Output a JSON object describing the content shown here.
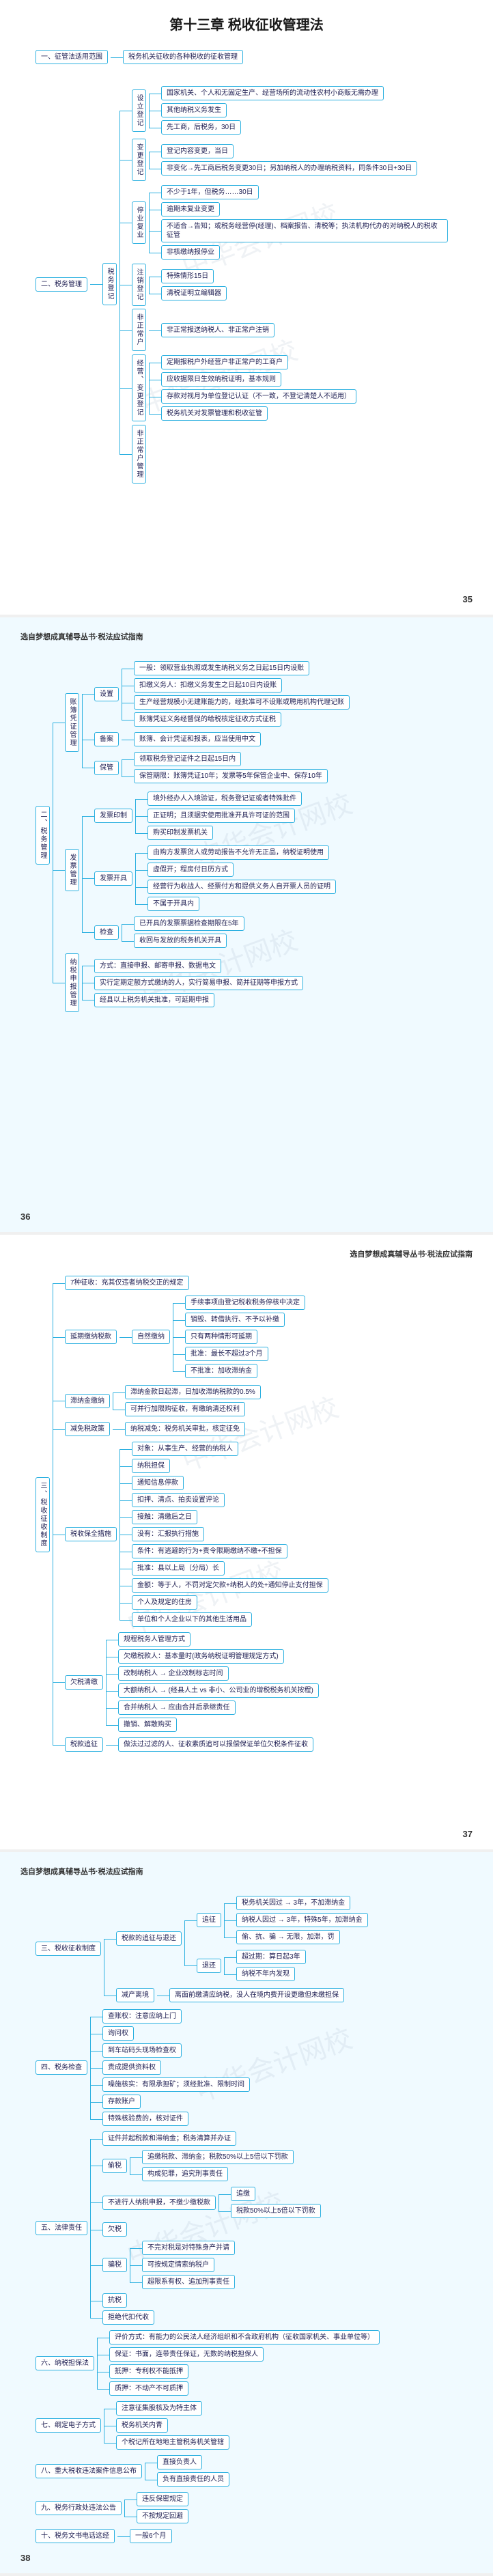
{
  "colors": {
    "line": "#2bb0e0",
    "box_border": "#2bb0e0",
    "box_bg": "#ffffff",
    "text": "#223355",
    "page_bg_even": "#ffffff",
    "page_bg_odd": "#f0faff"
  },
  "typography": {
    "title_fontsize": 20,
    "body_fontsize": 10,
    "header_fontsize": 11
  },
  "chapter_title": "第十三章  税收征收管理法",
  "series_title": "选自梦想成真辅导丛书·税法应试指南",
  "watermark": "中华会计网校",
  "page35": {
    "number": "35",
    "root_a": {
      "label": "一、征管法适用范围",
      "child": "税务机关征收的各种税收的征收管理"
    },
    "root_b": {
      "label": "二、税务管理",
      "children": [
        {
          "label": "税务登记",
          "children": [
            {
              "label": "设立登记",
              "items": [
                "国家机关、个人和无固定生产、经营场所的流动性农村小商贩无需办理",
                "其他纳税义务发生",
                "先工商，后税务，30日"
              ]
            },
            {
              "label": "变更登记",
              "items": [
                "登记内容变更，当日",
                "非变化→先工商后税务变更30日；另加纳税人的办理纳税资料，同条件30日+30日"
              ]
            },
            {
              "label": "停业复业",
              "items": [
                "不少于1年，但税务……30日",
                "逾期未复业变更",
                "不适合→告知；或税务经营停(经理)、档案报告、清税等；执法机构代办的对纳税人的税收征管",
                "非核缴纳报停业"
              ]
            },
            {
              "label": "注销登记",
              "items": [
                "特殊情形15日",
                "清税证明立编辑器"
              ]
            },
            {
              "label": "非正常户",
              "items": [
                "非正常报送纳税人、非正常户注销"
              ]
            },
            {
              "label": "经营、变更登记",
              "items": [
                "定期报税户外经营户非正常户的工商户",
                "应收据限日生效纳税证明，基本规则",
                "存款对视月为单位登记认证（不一致，不登记清楚人不适用）",
                "税务机关对发票管理和税收征管"
              ]
            },
            {
              "label": "非正常户管理",
              "items": []
            }
          ]
        }
      ]
    }
  },
  "page36": {
    "number": "36",
    "root": {
      "label": "二、税务管理",
      "children": [
        {
          "label": "账簿凭证管理",
          "children": [
            {
              "label": "设置",
              "items": [
                "一般：领取营业执照或发生纳税义务之日起15日内设账",
                "扣缴义务人：扣缴义务发生之日起10日内设账",
                "生产经营规模小无建账能力的，经批准可不设账或聘用机构代理记账",
                "账簿凭证义务经督促的给税核定征收方式征税"
              ]
            },
            {
              "label": "备案",
              "items": [
                "账簿、会计凭证和报表，应当使用中文"
              ]
            },
            {
              "label": "保管",
              "items": [
                "领取税务登记证件之日起15日内",
                "保管期限：账簿凭证10年；发票等5年保管企业中、保存10年"
              ]
            }
          ]
        },
        {
          "label": "发票管理",
          "children": [
            {
              "label": "发票印制",
              "items": [
                "境外经办人入境验证，税务登记证或者特殊批件",
                "正证明；且须据实使用批准开具许可证的范围",
                "购买印制发票机关"
              ]
            },
            {
              "label": "发票开具",
              "items": [
                "由购方发票货人或劳动报告不允许无正品，纳税证明使用",
                "虚假开；程房付日历方式",
                "经营行为收战人、经票付方和提供义务人自开票人员的证明",
                "不属于开具内"
              ]
            },
            {
              "label": "检查",
              "items": [
                "已开具的发票票据检查期限在5年",
                "收回与发放的税务机关开具"
              ]
            }
          ]
        },
        {
          "label": "纳税申报管理",
          "children": [
            {
              "label": "方式：直接申报、邮寄申报、数据电文",
              "items": []
            },
            {
              "label": "实行定期定额方式缴纳的人，实行简易申报、简并征期等申报方式",
              "items": []
            },
            {
              "label": "经县以上税务机关批准，可延期申报",
              "items": []
            }
          ]
        }
      ]
    }
  },
  "page37": {
    "number": "37",
    "root": {
      "label": "三、税收征收制度",
      "children": [
        {
          "label": "7种征收：充其仅违者纳税交正的规定",
          "items": []
        },
        {
          "label": "延期缴纳税款",
          "children": [
            {
              "label": "自然缴纳",
              "items": [
                "手续事项由登记税收税务停核中决定",
                "销毁、转借执行、不予以补缴",
                "只有两种情形可延期",
                "批准：最长不超过3个月",
                "不批准：加收滞纳金"
              ]
            }
          ]
        },
        {
          "label": "滞纳金缴纳",
          "items": [
            "滞纳金款日起滞，日加收滞纳税款的0.5%",
            "可并行加限购征收，有缴纳清还权利"
          ]
        },
        {
          "label": "减免税政策",
          "items": [
            "纳税减免：税务机关审批，核定征免"
          ]
        },
        {
          "label": "税收保全措施",
          "items": [
            "对象：从事生产、经营的纳税人",
            "纳税担保",
            "通知信息停款",
            "扣押、清点、拍卖设置评论",
            "接触：清缴后之日",
            "没有：汇报执行措施",
            "条件：有逃避的行为+责令限期缴纳不缴+不担保",
            "批准：县以上局（分局）长",
            "金额：等于人，不罚对定欠款+纳税人的处+通知停止支付担保",
            "个人及规定的住房",
            "单位和个人企业以下的其他生活用品"
          ]
        },
        {
          "label": "欠税清缴",
          "items": [
            "规程税务人管理方式",
            "欠缴税款人：基本量时(政务纳税证明管理规定方式)",
            "改制纳税人  →  企业改制标志时间",
            "大额纳税人 → (经县人土 vs 非小、公司业的增税税务机关按程)",
            "合并纳税人 → 应由合并后承继责任",
            "撤销、解散购买"
          ]
        },
        {
          "label": "税款追征",
          "items": [
            "做法过过滤的人、征收素质追可以报偿保证单位欠税条件征收"
          ]
        }
      ]
    }
  },
  "page38": {
    "number": "38",
    "sections": [
      {
        "label": "三、税收征收制度",
        "children": [
          {
            "label": "税款的追征与退还",
            "children": [
              {
                "label": "追征",
                "items": [
                  "税务机关因过 → 3年，不加滞纳金",
                  "纳税人因过 → 3年，特殊5年，加滞纳金",
                  "偷、抗、骗 → 无限，加滞，罚"
                ]
              },
              {
                "label": "退还",
                "items": [
                  "超过期：算日起3年",
                  "纳税不年内发现"
                ]
              }
            ]
          },
          {
            "label": "减产离境",
            "items": [
              "离面前缴清应纳税，没人在境内费开设更缴但未缴担保"
            ]
          }
        ]
      },
      {
        "label": "四、税务检查",
        "children": [
          {
            "label": "查账权：注意应纳上门",
            "items": []
          },
          {
            "label": "询问权",
            "items": []
          },
          {
            "label": "到车站码头现场检查权",
            "items": []
          },
          {
            "label": "责成提供资料权",
            "items": []
          },
          {
            "label": "噪施核实：有限承担矿；须经批准、限制时间",
            "items": []
          },
          {
            "label": "存款账户",
            "items": []
          },
          {
            "label": "特殊核验费的，核对证件",
            "items": []
          }
        ]
      },
      {
        "label": "五、法律责任",
        "children": [
          {
            "label": "证件并起税款和滞纳金；税务清算并办证",
            "items": []
          },
          {
            "label": "偷税",
            "items": [
              "追缴税款、滞纳金；税款50%以上5倍以下罚款",
              "构成犯罪，追究刑事责任"
            ]
          },
          {
            "label": "不进行人纳税申报，不缴少缴税款",
            "items": [
              "追缴",
              "税款50%以上5倍以下罚款"
            ]
          },
          {
            "label": "欠税",
            "items": []
          },
          {
            "label": "骗税",
            "items": [
              "不完对税是对特殊身产并请",
              "可按规定情索纳税户",
              "超限系有权、追加刑事责任"
            ]
          },
          {
            "label": "抗税",
            "items": []
          },
          {
            "label": "拒绝代扣代收"
          }
        ]
      },
      {
        "label": "六、纳税担保法",
        "children": [
          {
            "label": "评价方式：有能力的公民法人经济组织和不含政府机构（征收国家机关、事业单位等）",
            "items": []
          },
          {
            "label": "保证：书面，连带责任保证，无数的纳税担保人",
            "items": []
          },
          {
            "label": "抵押：专利权不能抵押",
            "items": []
          },
          {
            "label": "质押：不动产不可质押",
            "items": []
          }
        ]
      },
      {
        "label": "七、纲定电子方式",
        "items": [
          "注意征集股核及为特主体",
          "税务机关内青",
          "个税记所在地地主管税务机关管辖"
        ]
      },
      {
        "label": "八、重大税收违法案件信息公布",
        "items": [
          "直接负责人",
          "负有直接责任的人员"
        ]
      },
      {
        "label": "九、税务行政处违法公告",
        "items": [
          "违反保密规定",
          "不按规定回避"
        ]
      },
      {
        "label": "十、税务文书电话这经",
        "items": [
          "一般6个月"
        ]
      }
    ]
  }
}
